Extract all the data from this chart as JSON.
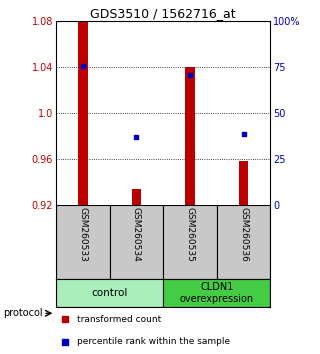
{
  "title": "GDS3510 / 1562716_at",
  "samples": [
    "GSM260533",
    "GSM260534",
    "GSM260535",
    "GSM260536"
  ],
  "bar_values": [
    1.079,
    0.934,
    1.04,
    0.958
  ],
  "bar_baseline": 0.92,
  "percentile_values": [
    0.756,
    0.368,
    0.706,
    0.385
  ],
  "ylim": [
    0.92,
    1.08
  ],
  "yticks_left": [
    0.92,
    0.96,
    1.0,
    1.04,
    1.08
  ],
  "yticks_right": [
    0,
    25,
    50,
    75,
    100
  ],
  "bar_color": "#bb0000",
  "dot_color": "#0000bb",
  "group1_label": "control",
  "group2_label": "CLDN1\noverexpression",
  "group1_color": "#aaeebb",
  "group2_color": "#44cc44",
  "label_bar": "transformed count",
  "label_dot": "percentile rank within the sample",
  "protocol_label": "protocol"
}
